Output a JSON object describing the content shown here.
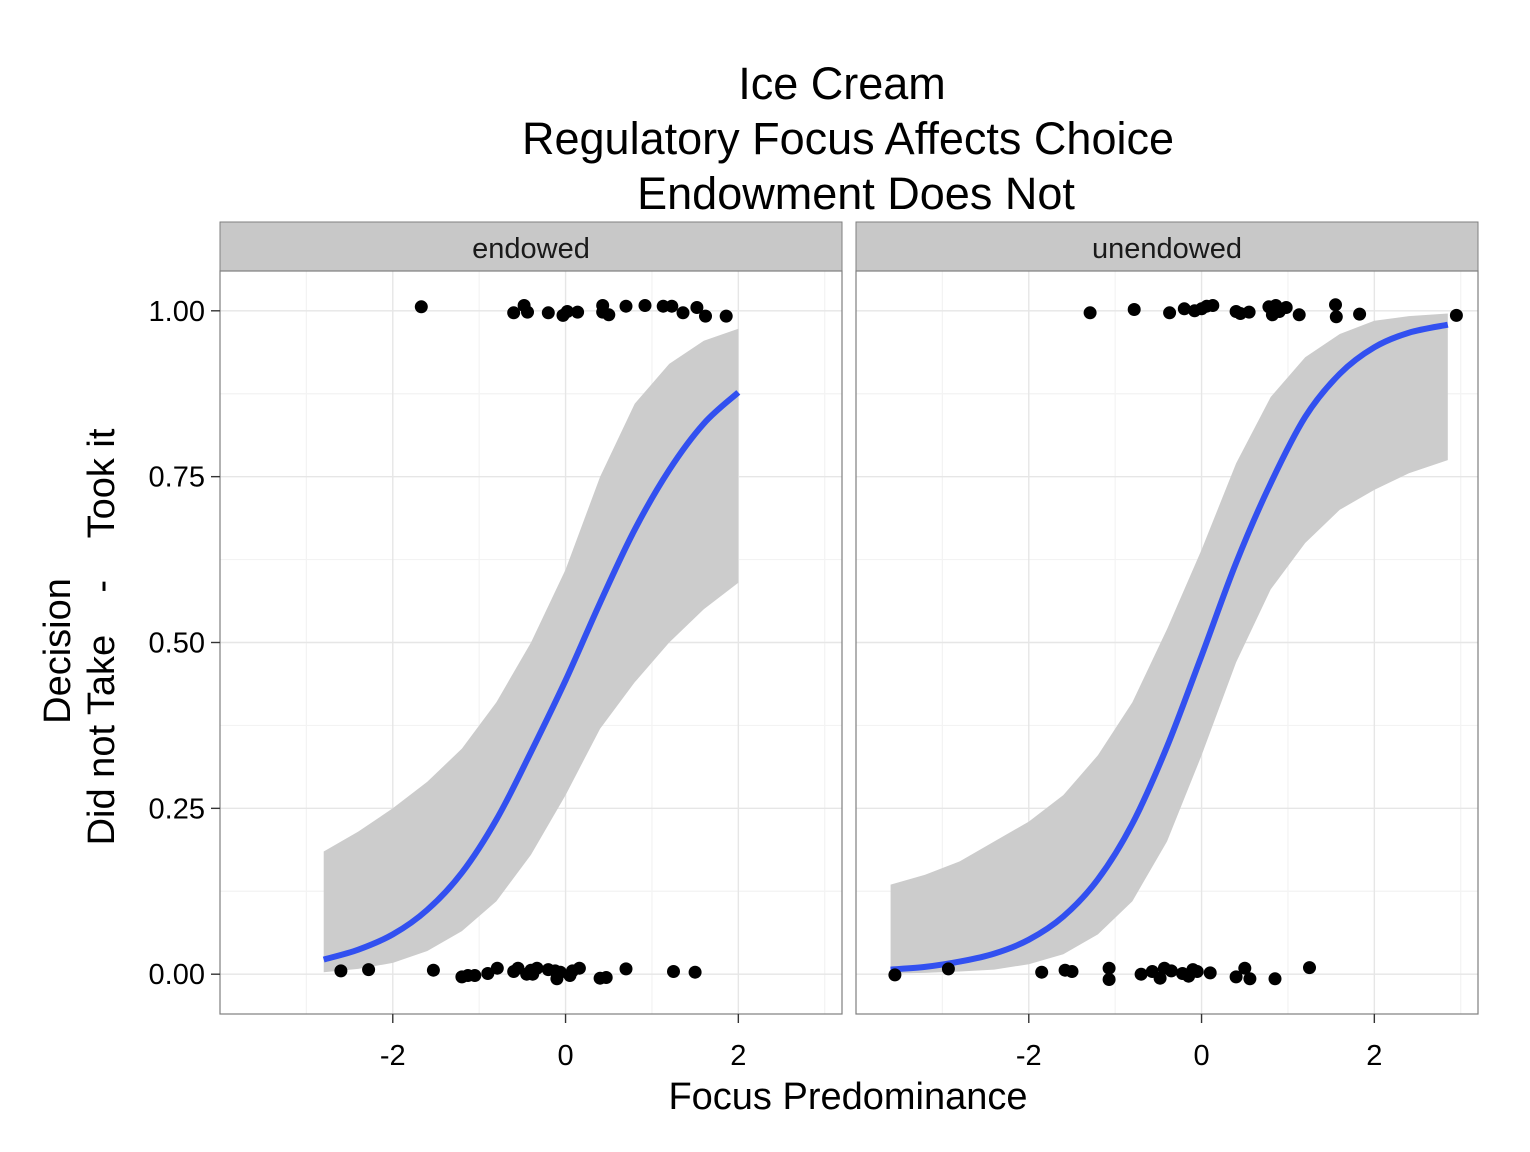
{
  "chart_data": {
    "type": "scatter",
    "title_lines": [
      "Ice Cream",
      "Regulatory Focus Affects Choice",
      "Endowment Does Not"
    ],
    "xlabel": "Focus Predominance",
    "ylabel_lines": [
      "Decision",
      "Did not Take    -    Took it"
    ],
    "xlim": [
      -4.0,
      3.2
    ],
    "ylim": [
      -0.06,
      1.06
    ],
    "x_ticks": [
      -2,
      0,
      2
    ],
    "x_tick_labels": [
      "-2",
      "0",
      "2"
    ],
    "y_ticks": [
      0,
      0.25,
      0.5,
      0.75,
      1.0
    ],
    "y_tick_labels": [
      "0.00",
      "0.25",
      "0.50",
      "0.75",
      "1.00"
    ],
    "grid": true,
    "colors": {
      "points": "#000000",
      "fit_line": "#3250f0",
      "ribbon": "#cccccc",
      "strip_fill": "#c8c8c8",
      "panel_border": "#7f7f7f",
      "grid_major": "#e6e6e6",
      "grid_minor": "#f3f3f3"
    },
    "panels": [
      {
        "label": "endowed",
        "fit": {
          "x": [
            -2.8,
            -2.4,
            -2.0,
            -1.6,
            -1.2,
            -0.8,
            -0.4,
            0.0,
            0.4,
            0.8,
            1.2,
            1.6,
            2.0
          ],
          "y": [
            0.022,
            0.037,
            0.06,
            0.097,
            0.153,
            0.233,
            0.335,
            0.443,
            0.56,
            0.67,
            0.76,
            0.83,
            0.877
          ],
          "lower": [
            0.003,
            0.008,
            0.017,
            0.035,
            0.065,
            0.11,
            0.18,
            0.27,
            0.37,
            0.44,
            0.5,
            0.55,
            0.59
          ],
          "upper": [
            0.185,
            0.215,
            0.25,
            0.29,
            0.34,
            0.41,
            0.5,
            0.61,
            0.75,
            0.86,
            0.92,
            0.955,
            0.973
          ]
        },
        "points": [
          {
            "x": -1.67,
            "y": 1.006
          },
          {
            "x": -0.6,
            "y": 0.997
          },
          {
            "x": -0.48,
            "y": 1.008
          },
          {
            "x": -0.44,
            "y": 0.998
          },
          {
            "x": -0.2,
            "y": 0.997
          },
          {
            "x": -0.03,
            "y": 0.993
          },
          {
            "x": 0.02,
            "y": 0.999
          },
          {
            "x": 0.14,
            "y": 0.998
          },
          {
            "x": 0.43,
            "y": 1.008
          },
          {
            "x": 0.43,
            "y": 0.998
          },
          {
            "x": 0.5,
            "y": 0.994
          },
          {
            "x": 0.7,
            "y": 1.007
          },
          {
            "x": 0.92,
            "y": 1.008
          },
          {
            "x": 1.13,
            "y": 1.007
          },
          {
            "x": 1.23,
            "y": 1.007
          },
          {
            "x": 1.36,
            "y": 0.997
          },
          {
            "x": 1.52,
            "y": 1.005
          },
          {
            "x": 1.62,
            "y": 0.992
          },
          {
            "x": 1.86,
            "y": 0.992
          },
          {
            "x": -2.6,
            "y": 0.005
          },
          {
            "x": -2.28,
            "y": 0.007
          },
          {
            "x": -1.53,
            "y": 0.006
          },
          {
            "x": -1.2,
            "y": -0.004
          },
          {
            "x": -1.13,
            "y": -0.002
          },
          {
            "x": -1.05,
            "y": -0.002
          },
          {
            "x": -0.9,
            "y": 0.001
          },
          {
            "x": -0.79,
            "y": 0.009
          },
          {
            "x": -0.6,
            "y": 0.004
          },
          {
            "x": -0.55,
            "y": 0.009
          },
          {
            "x": -0.45,
            "y": 0.0
          },
          {
            "x": -0.4,
            "y": 0.006
          },
          {
            "x": -0.33,
            "y": 0.009
          },
          {
            "x": -0.38,
            "y": 0.0
          },
          {
            "x": -0.2,
            "y": 0.007
          },
          {
            "x": -0.12,
            "y": 0.005
          },
          {
            "x": -0.1,
            "y": -0.007
          },
          {
            "x": -0.06,
            "y": 0.003
          },
          {
            "x": 0.05,
            "y": -0.002
          },
          {
            "x": 0.08,
            "y": 0.005
          },
          {
            "x": 0.16,
            "y": 0.009
          },
          {
            "x": 0.4,
            "y": -0.006
          },
          {
            "x": 0.47,
            "y": -0.005
          },
          {
            "x": 0.7,
            "y": 0.008
          },
          {
            "x": 1.25,
            "y": 0.004
          },
          {
            "x": 1.5,
            "y": 0.003
          }
        ]
      },
      {
        "label": "unendowed",
        "fit": {
          "x": [
            -3.6,
            -3.2,
            -2.8,
            -2.4,
            -2.0,
            -1.6,
            -1.2,
            -0.8,
            -0.4,
            0.0,
            0.4,
            0.8,
            1.2,
            1.6,
            2.0,
            2.4,
            2.85
          ],
          "y": [
            0.007,
            0.011,
            0.019,
            0.031,
            0.052,
            0.087,
            0.143,
            0.227,
            0.343,
            0.48,
            0.62,
            0.74,
            0.84,
            0.905,
            0.945,
            0.967,
            0.979
          ],
          "lower": [
            0.001,
            0.002,
            0.004,
            0.007,
            0.015,
            0.03,
            0.06,
            0.11,
            0.2,
            0.33,
            0.47,
            0.58,
            0.65,
            0.7,
            0.73,
            0.755,
            0.775
          ],
          "upper": [
            0.135,
            0.15,
            0.17,
            0.2,
            0.23,
            0.27,
            0.33,
            0.41,
            0.52,
            0.64,
            0.77,
            0.87,
            0.93,
            0.965,
            0.985,
            0.992,
            0.996
          ]
        },
        "points": [
          {
            "x": -1.29,
            "y": 0.997
          },
          {
            "x": -0.78,
            "y": 1.002
          },
          {
            "x": -0.37,
            "y": 0.997
          },
          {
            "x": -0.2,
            "y": 1.003
          },
          {
            "x": -0.08,
            "y": 1.0
          },
          {
            "x": 0.0,
            "y": 1.003
          },
          {
            "x": 0.06,
            "y": 1.007
          },
          {
            "x": 0.13,
            "y": 1.008
          },
          {
            "x": 0.4,
            "y": 0.999
          },
          {
            "x": 0.45,
            "y": 0.996
          },
          {
            "x": 0.55,
            "y": 0.998
          },
          {
            "x": 0.78,
            "y": 1.006
          },
          {
            "x": 0.82,
            "y": 0.994
          },
          {
            "x": 0.86,
            "y": 1.008
          },
          {
            "x": 0.9,
            "y": 0.999
          },
          {
            "x": 0.98,
            "y": 1.005
          },
          {
            "x": 1.13,
            "y": 0.994
          },
          {
            "x": 1.55,
            "y": 1.009
          },
          {
            "x": 1.56,
            "y": 0.991
          },
          {
            "x": 1.83,
            "y": 0.995
          },
          {
            "x": 2.95,
            "y": 0.993
          },
          {
            "x": -3.55,
            "y": -0.001
          },
          {
            "x": -2.93,
            "y": 0.008
          },
          {
            "x": -1.85,
            "y": 0.003
          },
          {
            "x": -1.58,
            "y": 0.006
          },
          {
            "x": -1.5,
            "y": 0.004
          },
          {
            "x": -1.07,
            "y": -0.008
          },
          {
            "x": -1.07,
            "y": 0.009
          },
          {
            "x": -0.7,
            "y": 0.0
          },
          {
            "x": -0.57,
            "y": 0.004
          },
          {
            "x": -0.48,
            "y": -0.006
          },
          {
            "x": -0.43,
            "y": 0.009
          },
          {
            "x": -0.35,
            "y": 0.005
          },
          {
            "x": -0.22,
            "y": 0.001
          },
          {
            "x": -0.15,
            "y": -0.003
          },
          {
            "x": -0.1,
            "y": 0.007
          },
          {
            "x": -0.05,
            "y": 0.004
          },
          {
            "x": 0.1,
            "y": 0.002
          },
          {
            "x": 0.4,
            "y": -0.004
          },
          {
            "x": 0.5,
            "y": 0.009
          },
          {
            "x": 0.56,
            "y": -0.007
          },
          {
            "x": 0.85,
            "y": -0.007
          },
          {
            "x": 1.25,
            "y": 0.01
          }
        ]
      }
    ]
  }
}
